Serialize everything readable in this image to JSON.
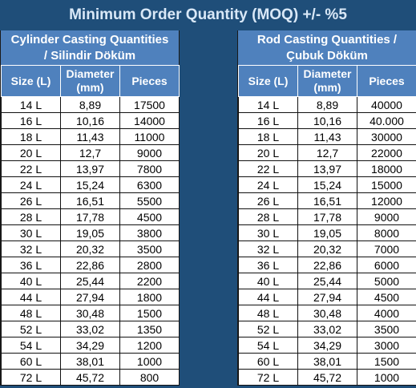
{
  "title": "Minimum Order Quantity (MOQ) +/- %5",
  "left": {
    "title": "Cylinder Casting Quantities\n/ Silindir Döküm",
    "headers": [
      "Size (L)",
      "Diameter\n(mm)",
      "Pieces"
    ],
    "rows": [
      [
        "14 L",
        "8,89",
        "17500"
      ],
      [
        "16 L",
        "10,16",
        "14000"
      ],
      [
        "18 L",
        "11,43",
        "11000"
      ],
      [
        "20 L",
        "12,7",
        "9000"
      ],
      [
        "22 L",
        "13,97",
        "7800"
      ],
      [
        "24 L",
        "15,24",
        "6300"
      ],
      [
        "26 L",
        "16,51",
        "5500"
      ],
      [
        "28 L",
        "17,78",
        "4500"
      ],
      [
        "30 L",
        "19,05",
        "3800"
      ],
      [
        "32 L",
        "20,32",
        "3500"
      ],
      [
        "36 L",
        "22,86",
        "2800"
      ],
      [
        "40 L",
        "25,44",
        "2200"
      ],
      [
        "44 L",
        "27,94",
        "1800"
      ],
      [
        "48 L",
        "30,48",
        "1500"
      ],
      [
        "52 L",
        "33,02",
        "1350"
      ],
      [
        "54 L",
        "34,29",
        "1200"
      ],
      [
        "60 L",
        "38,01",
        "1000"
      ],
      [
        "72 L",
        "45,72",
        "800"
      ]
    ]
  },
  "right": {
    "title": "Rod Casting Quantities /\nÇubuk Döküm",
    "headers": [
      "Size (L)",
      "Diameter\n(mm)",
      "Pieces"
    ],
    "rows": [
      [
        "14 L",
        "8,89",
        "40000"
      ],
      [
        "16 L",
        "10,16",
        "40.000"
      ],
      [
        "18 L",
        "11,43",
        "30000"
      ],
      [
        "20 L",
        "12,7",
        "22000"
      ],
      [
        "22 L",
        "13,97",
        "18000"
      ],
      [
        "24 L",
        "15,24",
        "15000"
      ],
      [
        "26 L",
        "16,51",
        "12000"
      ],
      [
        "28 L",
        "17,78",
        "9000"
      ],
      [
        "30 L",
        "19,05",
        "8000"
      ],
      [
        "32 L",
        "20,32",
        "7000"
      ],
      [
        "36 L",
        "22,86",
        "6000"
      ],
      [
        "40 L",
        "25,44",
        "5000"
      ],
      [
        "44 L",
        "27,94",
        "4500"
      ],
      [
        "48 L",
        "30,48",
        "4000"
      ],
      [
        "52 L",
        "33,02",
        "3500"
      ],
      [
        "54 L",
        "34,29",
        "3000"
      ],
      [
        "60 L",
        "38,01",
        "1500"
      ],
      [
        "72 L",
        "45,72",
        "1000"
      ]
    ]
  },
  "colors": {
    "background": "#1f4e79",
    "header": "#4f81bd",
    "title_text": "#d9e8f7"
  }
}
